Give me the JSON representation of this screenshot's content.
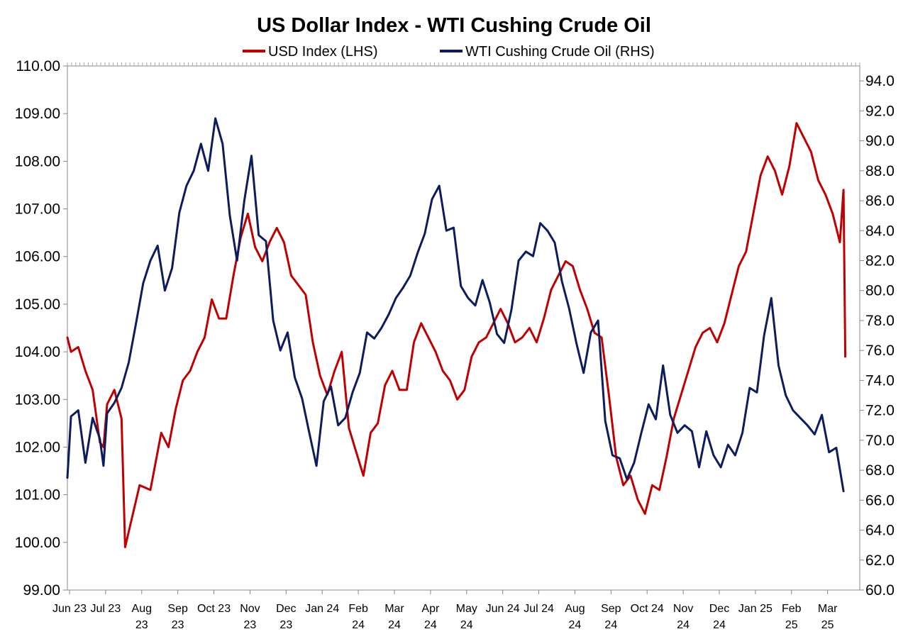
{
  "chart_data": {
    "type": "line",
    "title": "US Dollar Index - WTI Cushing Crude Oil",
    "legend_position": "top-center",
    "grid": false,
    "x_tick_labels": [
      [
        "Jun 23"
      ],
      [
        "Jul 23"
      ],
      [
        "Aug",
        "23"
      ],
      [
        "Sep",
        "23"
      ],
      [
        "Oct 23"
      ],
      [
        "Nov",
        "23"
      ],
      [
        "Dec",
        "23"
      ],
      [
        "Jan 24"
      ],
      [
        "Feb",
        "24"
      ],
      [
        "Mar",
        "24"
      ],
      [
        "Apr",
        "24"
      ],
      [
        "May",
        "24"
      ],
      [
        "Jun 24"
      ],
      [
        "Jul 24"
      ],
      [
        "Aug",
        "24"
      ],
      [
        "Sep",
        "24"
      ],
      [
        "Oct 24"
      ],
      [
        "Nov",
        "24"
      ],
      [
        "Dec",
        "24"
      ],
      [
        "Jan 25"
      ],
      [
        "Feb",
        "25"
      ],
      [
        "Mar",
        "25"
      ]
    ],
    "y_left": {
      "label": "USD Index (LHS)",
      "range": [
        99.0,
        110.0
      ],
      "ticks": [
        "99.00",
        "100.00",
        "101.00",
        "102.00",
        "103.00",
        "104.00",
        "105.00",
        "106.00",
        "107.00",
        "108.00",
        "109.00",
        "110.00"
      ]
    },
    "y_right": {
      "label": "WTI Cushing Crude Oil (RHS)",
      "range": [
        60.0,
        95.0
      ],
      "ticks": [
        "60.0",
        "62.0",
        "64.0",
        "66.0",
        "68.0",
        "70.0",
        "72.0",
        "74.0",
        "76.0",
        "78.0",
        "80.0",
        "82.0",
        "84.0",
        "86.0",
        "88.0",
        "90.0",
        "92.0",
        "94.0"
      ]
    },
    "series": [
      {
        "name": "USD Index (LHS)",
        "axis": "left",
        "color": "#C00000",
        "x": [
          0,
          0.1,
          0.3,
          0.5,
          0.7,
          0.9,
          1.0,
          1.1,
          1.3,
          1.5,
          1.6,
          2.0,
          2.3,
          2.6,
          2.8,
          3.0,
          3.2,
          3.4,
          3.6,
          3.8,
          4.0,
          4.2,
          4.4,
          4.6,
          4.8,
          5.0,
          5.2,
          5.4,
          5.6,
          5.8,
          6.0,
          6.2,
          6.4,
          6.6,
          6.8,
          7.0,
          7.2,
          7.4,
          7.6,
          7.8,
          8.0,
          8.2,
          8.4,
          8.6,
          8.8,
          9.0,
          9.2,
          9.4,
          9.6,
          9.8,
          10.0,
          10.2,
          10.4,
          10.6,
          10.8,
          11.0,
          11.2,
          11.4,
          11.6,
          11.8,
          12.0,
          12.2,
          12.4,
          12.6,
          12.8,
          13.0,
          13.2,
          13.4,
          13.6,
          13.8,
          14.0,
          14.2,
          14.4,
          14.6,
          14.8,
          15.0,
          15.2,
          15.4,
          15.6,
          15.8,
          16.0,
          16.2,
          16.4,
          16.6,
          16.8,
          17.0,
          17.2,
          17.4,
          17.6,
          17.8,
          18.0,
          18.2,
          18.4,
          18.6,
          18.8,
          19.0,
          19.2,
          19.4,
          19.6,
          19.8,
          20.0,
          20.2,
          20.4,
          20.6,
          20.8,
          21.0,
          21.2,
          21.4,
          21.5,
          21.55
        ],
        "values": [
          104.3,
          104.0,
          104.1,
          103.6,
          103.2,
          102.1,
          102.0,
          102.9,
          103.2,
          102.6,
          99.9,
          101.2,
          101.1,
          102.3,
          102.0,
          102.8,
          103.4,
          103.6,
          104.0,
          104.3,
          105.1,
          104.7,
          104.7,
          105.6,
          106.4,
          106.9,
          106.2,
          105.9,
          106.3,
          106.6,
          106.3,
          105.6,
          105.4,
          105.2,
          104.2,
          103.5,
          103.1,
          103.6,
          104.0,
          102.4,
          101.9,
          101.4,
          102.3,
          102.5,
          103.3,
          103.6,
          103.2,
          103.2,
          104.2,
          104.6,
          104.3,
          104.0,
          103.6,
          103.4,
          103.0,
          103.2,
          103.9,
          104.2,
          104.3,
          104.6,
          104.9,
          104.6,
          104.2,
          104.3,
          104.5,
          104.2,
          104.7,
          105.3,
          105.6,
          105.9,
          105.8,
          105.3,
          104.9,
          104.4,
          104.3,
          103.1,
          101.8,
          101.2,
          101.4,
          100.9,
          100.6,
          101.2,
          101.1,
          101.8,
          102.6,
          103.1,
          103.6,
          104.1,
          104.4,
          104.5,
          104.2,
          104.6,
          105.2,
          105.8,
          106.1,
          106.9,
          107.7,
          108.1,
          107.8,
          107.3,
          107.9,
          108.8,
          108.5,
          108.2,
          107.6,
          107.3,
          106.9,
          106.3,
          107.4,
          103.9
        ],
        "x_full": "0 0.045 0.09 0.13 0.18 0.22 0.27 0.31 0.36 0.4 0.45 0.5 0.54 0.59 0.63 0.68 0.72 0.77 0.81 0.86 0.9 0.95 1.0 1.04 1.09 1.13 1.18 1.22 1.27 1.31 1.36 1.4 1.45 1.5 1.54 1.59 1.63 1.68 1.72 1.77 1.81 1.86 1.9 1.95 2.0"
      },
      {
        "name": "WTI Cushing Crude Oil (RHS)",
        "axis": "right",
        "color": "#0C1C5C",
        "x": [
          0,
          0.1,
          0.3,
          0.5,
          0.7,
          0.9,
          1.0,
          1.1,
          1.3,
          1.5,
          1.7,
          1.9,
          2.1,
          2.3,
          2.5,
          2.7,
          2.9,
          3.1,
          3.3,
          3.5,
          3.7,
          3.9,
          4.1,
          4.3,
          4.5,
          4.7,
          4.9,
          5.1,
          5.3,
          5.5,
          5.7,
          5.9,
          6.1,
          6.3,
          6.5,
          6.7,
          6.9,
          7.1,
          7.3,
          7.5,
          7.7,
          7.9,
          8.1,
          8.3,
          8.5,
          8.7,
          8.9,
          9.1,
          9.3,
          9.5,
          9.7,
          9.9,
          10.1,
          10.3,
          10.5,
          10.7,
          10.9,
          11.1,
          11.3,
          11.5,
          11.7,
          11.9,
          12.1,
          12.3,
          12.5,
          12.7,
          12.9,
          13.1,
          13.3,
          13.5,
          13.7,
          13.9,
          14.1,
          14.3,
          14.5,
          14.7,
          14.9,
          15.1,
          15.3,
          15.5,
          15.7,
          15.9,
          16.1,
          16.3,
          16.5,
          16.7,
          16.9,
          17.1,
          17.3,
          17.5,
          17.7,
          17.9,
          18.1,
          18.3,
          18.5,
          18.7,
          18.9,
          19.1,
          19.3,
          19.5,
          19.7,
          19.9,
          20.1,
          20.3,
          20.5,
          20.7,
          20.9,
          21.1,
          21.3,
          21.5
        ],
        "values": [
          67.5,
          71.6,
          72.0,
          68.5,
          71.5,
          70.1,
          68.3,
          71.8,
          72.5,
          73.5,
          75.2,
          77.8,
          80.5,
          82.0,
          83.0,
          80.0,
          81.5,
          85.2,
          87.0,
          88.0,
          89.8,
          88.0,
          91.5,
          89.8,
          85.0,
          82.0,
          86.0,
          89.0,
          83.7,
          83.3,
          78.0,
          76.0,
          77.2,
          74.2,
          72.8,
          70.5,
          68.3,
          72.6,
          73.6,
          71.0,
          71.5,
          73.2,
          74.5,
          77.2,
          76.8,
          77.5,
          78.4,
          79.5,
          80.2,
          81.0,
          82.5,
          83.8,
          86.1,
          87.0,
          84.0,
          84.2,
          80.3,
          79.5,
          79.0,
          80.7,
          79.2,
          77.1,
          76.5,
          78.7,
          82.0,
          82.6,
          82.3,
          84.5,
          84.0,
          83.2,
          80.6,
          78.8,
          76.5,
          74.5,
          77.2,
          78.0,
          71.3,
          69.0,
          68.8,
          67.4,
          68.5,
          70.5,
          72.4,
          71.4,
          75.0,
          71.7,
          70.5,
          71.0,
          70.6,
          68.2,
          70.6,
          69.0,
          68.2,
          69.7,
          69.0,
          70.5,
          73.5,
          73.2,
          77.0,
          79.5,
          75.0,
          73.0,
          72.0,
          71.5,
          71.0,
          70.4,
          71.7,
          69.2,
          69.5,
          66.6
        ]
      }
    ]
  }
}
